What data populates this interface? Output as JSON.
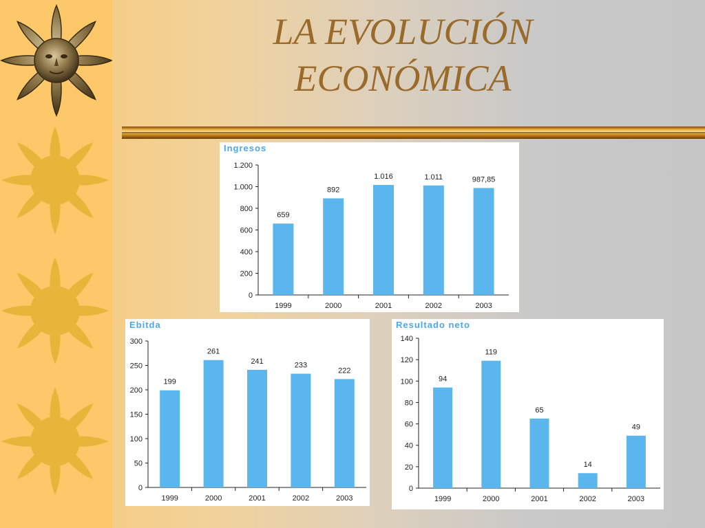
{
  "slide": {
    "title_line1": "LA EVOLUCIÓN",
    "title_line2": "ECONÓMICA"
  },
  "colors": {
    "bar": "#5bb6ee",
    "title": "#9a6a2b",
    "sidebar": "#fcc869",
    "sun": "#e8b43a"
  },
  "sidebar_icons": [
    "sun-face-icon",
    "sun-icon",
    "sun-icon",
    "sun-icon"
  ],
  "chart_data": [
    {
      "type": "bar",
      "title": "Ingresos",
      "categories": [
        "1999",
        "2000",
        "2001",
        "2002",
        "2003"
      ],
      "values": [
        659,
        892,
        1016,
        1011,
        987.85
      ],
      "value_labels": [
        "659",
        "892",
        "1.016",
        "1.011",
        "987,85"
      ],
      "yticks": [
        0,
        200,
        400,
        600,
        800,
        1000,
        1200
      ],
      "ytick_labels": [
        "0",
        "200",
        "400",
        "600",
        "800",
        "1.000",
        "1.200"
      ],
      "ylim": [
        0,
        1200
      ],
      "grid": false,
      "legend": "none"
    },
    {
      "type": "bar",
      "title": "Ebitda",
      "categories": [
        "1999",
        "2000",
        "2001",
        "2002",
        "2003"
      ],
      "values": [
        199,
        261,
        241,
        233,
        222
      ],
      "value_labels": [
        "199",
        "261",
        "241",
        "233",
        "222"
      ],
      "yticks": [
        0,
        50,
        100,
        150,
        200,
        250,
        300
      ],
      "ytick_labels": [
        "0",
        "50",
        "100",
        "150",
        "200",
        "250",
        "300"
      ],
      "ylim": [
        0,
        300
      ],
      "grid": false,
      "legend": "none"
    },
    {
      "type": "bar",
      "title": "Resultado neto",
      "categories": [
        "1999",
        "2000",
        "2001",
        "2002",
        "2003"
      ],
      "values": [
        94,
        119,
        65,
        14,
        49
      ],
      "value_labels": [
        "94",
        "119",
        "65",
        "14",
        "49"
      ],
      "yticks": [
        0,
        20,
        40,
        60,
        80,
        100,
        120,
        140
      ],
      "ytick_labels": [
        "0",
        "20",
        "40",
        "60",
        "80",
        "100",
        "120",
        "140"
      ],
      "ylim": [
        0,
        140
      ],
      "grid": false,
      "legend": "none"
    }
  ]
}
